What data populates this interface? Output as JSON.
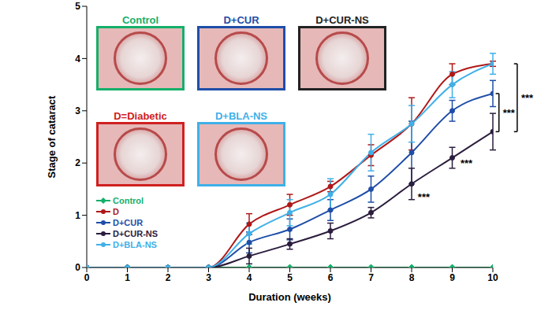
{
  "chart_data": {
    "type": "line",
    "x_label": "Duration (weeks)",
    "y_label": "Stage of cataract",
    "x": [
      0,
      1,
      2,
      3,
      4,
      5,
      6,
      7,
      8,
      9,
      10
    ],
    "xlim": [
      0,
      10
    ],
    "xticks": [
      0,
      1,
      2,
      3,
      4,
      5,
      6,
      7,
      8,
      9,
      10
    ],
    "ylim": [
      0,
      5
    ],
    "yticks": [
      0,
      1,
      2,
      3,
      4,
      5
    ],
    "grid": false,
    "legend": "lower left",
    "series": [
      {
        "name": "Control",
        "color": "#14b06a",
        "marker": "diamond",
        "line_style": "solid",
        "values": [
          0,
          0,
          0,
          0,
          0,
          0,
          0,
          0,
          0,
          0,
          0
        ],
        "errors": [
          null,
          null,
          null,
          null,
          null,
          null,
          null,
          null,
          null,
          null,
          null
        ]
      },
      {
        "name": "D",
        "color": "#b01818",
        "marker": "circle",
        "line_style": "solid",
        "values": [
          0,
          0,
          0,
          0,
          0.83,
          1.2,
          1.55,
          2.15,
          2.75,
          3.7,
          3.9
        ],
        "errors": [
          null,
          null,
          null,
          null,
          0.2,
          0.2,
          0.1,
          0.2,
          0.5,
          0.2,
          0.05
        ]
      },
      {
        "name": "D+CUR",
        "color": "#1f4ea8",
        "marker": "circle",
        "line_style": "solid",
        "values": [
          0,
          0,
          0,
          0,
          0.48,
          0.73,
          1.1,
          1.5,
          2.2,
          3.0,
          3.33
        ],
        "errors": [
          null,
          null,
          null,
          null,
          0.2,
          0.2,
          0.2,
          0.25,
          0.6,
          0.2,
          0.25
        ]
      },
      {
        "name": "D+CUR-NS",
        "color": "#2b1d3d",
        "marker": "circle",
        "line_style": "solid",
        "values": [
          0,
          0,
          0,
          0,
          0.22,
          0.45,
          0.7,
          1.05,
          1.6,
          2.1,
          2.6
        ],
        "errors": [
          null,
          null,
          null,
          null,
          0.15,
          0.1,
          0.15,
          0.1,
          0.3,
          0.2,
          0.35
        ]
      },
      {
        "name": "D+BLA-NS",
        "color": "#3fb0e8",
        "marker": "circle",
        "line_style": "solid",
        "values": [
          0,
          0,
          0,
          0,
          0.65,
          1.05,
          1.4,
          2.2,
          2.75,
          3.5,
          3.9
        ],
        "errors": [
          null,
          null,
          null,
          null,
          0.2,
          0.25,
          0.3,
          0.35,
          0.35,
          0.25,
          0.2
        ]
      }
    ],
    "annotations": [
      {
        "text": "***",
        "x": 8.3,
        "y": 1.35
      },
      {
        "text": "***",
        "x": 9.35,
        "y": 2.0
      }
    ],
    "brackets": [
      {
        "from": 3.33,
        "to": 2.6,
        "label": "***"
      },
      {
        "from": 3.9,
        "to": 2.6,
        "label": "***"
      }
    ],
    "insets": [
      {
        "label": "Control",
        "color": "#14b06a"
      },
      {
        "label": "D+CUR",
        "color": "#1f4ea8"
      },
      {
        "label": "D+CUR-NS",
        "color": "#222222"
      },
      {
        "label": "D=Diabetic",
        "color": "#d02020"
      },
      {
        "label": "D+BLA-NS",
        "color": "#3fb0e8"
      }
    ]
  }
}
